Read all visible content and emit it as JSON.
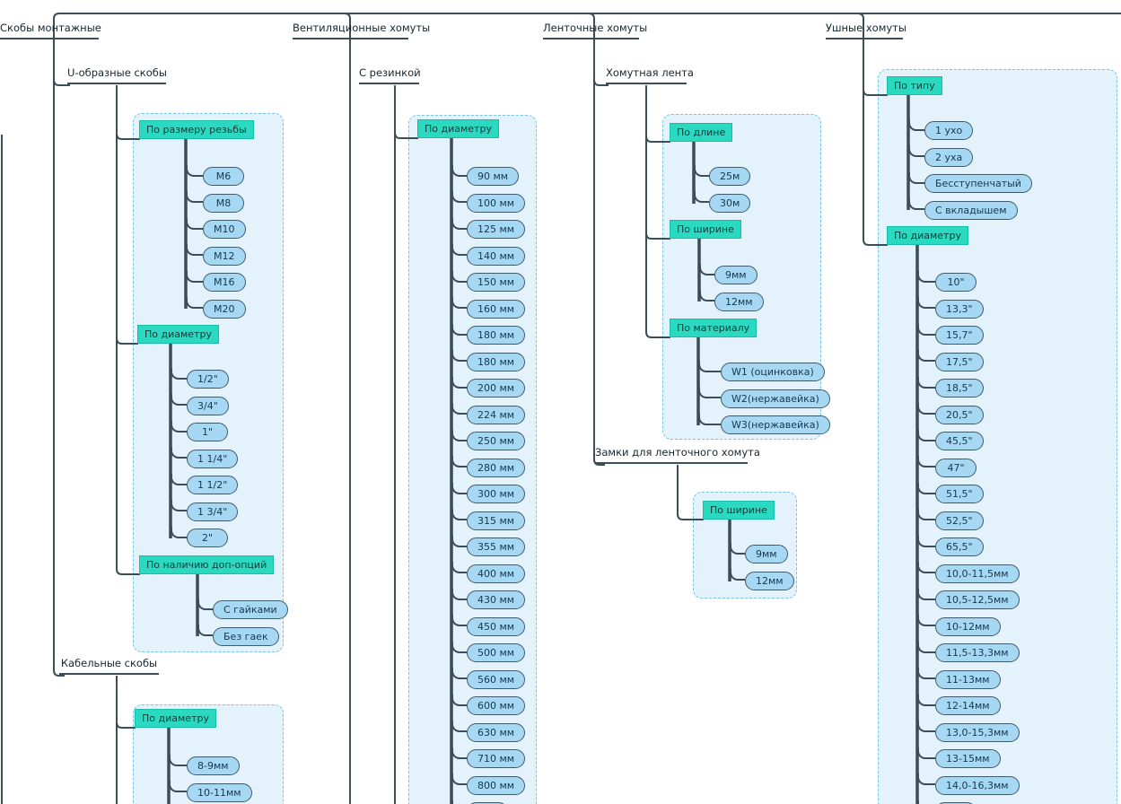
{
  "colors": {
    "line": "#3b4d57",
    "group_header_bg": "#2bd8c0",
    "group_header_border": "#17bda7",
    "pill_bg": "#a6d8f4",
    "pill_border": "#42596b",
    "box_bg": "#e4f3fb",
    "box_border": "#76c4e8"
  },
  "columns": [
    {
      "title": "Скобы монтажные",
      "children": [
        {
          "title": "U-образные скобы",
          "groups": [
            {
              "header": "По размеру резьбы",
              "items": [
                "М6",
                "М8",
                "М10",
                "М12",
                "М16",
                "М20"
              ]
            },
            {
              "header": "По диаметру",
              "items": [
                "1/2\"",
                "3/4\"",
                "1\"",
                "1 1/4\"",
                "1 1/2\"",
                "1 3/4\"",
                "2\""
              ]
            },
            {
              "header": "По наличию доп-опций",
              "items": [
                "С гайками",
                "Без гаек"
              ]
            }
          ]
        },
        {
          "title": "Кабельные скобы",
          "groups": [
            {
              "header": "По диаметру",
              "items": [
                "8-9мм",
                "10-11мм"
              ]
            }
          ]
        }
      ]
    },
    {
      "title": "Вентиляционные хомуты",
      "children": [
        {
          "title": "С резинкой",
          "groups": [
            {
              "header": "По диаметру",
              "items": [
                "90 мм",
                "100 мм",
                "125 мм",
                "140 мм",
                "150 мм",
                "160 мм",
                "180 мм",
                "180 мм",
                "200 мм",
                "224 мм",
                "250 мм",
                "280 мм",
                "300 мм",
                "315 мм",
                "355 мм",
                "400 мм",
                "430 мм",
                "450 мм",
                "500 мм",
                "560 мм",
                "600 мм",
                "630 мм",
                "710 мм",
                "800 мм",
                ""
              ]
            }
          ]
        }
      ]
    },
    {
      "title": "Ленточные хомуты",
      "children": [
        {
          "title": "Хомутная лента",
          "groups": [
            {
              "header": "По длине",
              "items": [
                "25м",
                "30м"
              ]
            },
            {
              "header": "По ширине",
              "items": [
                "9мм",
                "12мм"
              ]
            },
            {
              "header": "По материалу",
              "items": [
                "W1 (оцинковка)",
                "W2(нержавейка)",
                "W3(нержавейка)"
              ]
            }
          ]
        },
        {
          "title": "Замки для ленточного хомута",
          "groups": [
            {
              "header": "По ширине",
              "items": [
                "9мм",
                "12мм"
              ]
            }
          ]
        }
      ]
    },
    {
      "title": "Ушные хомуты",
      "groups": [
        {
          "header": "По типу",
          "items": [
            "1 ухо",
            "2 уха",
            "Бесступенчатый",
            "С вкладышем"
          ]
        },
        {
          "header": "По диаметру",
          "items": [
            "10\"",
            "13,3\"",
            "15,7\"",
            "17,5\"",
            "18,5\"",
            "20,5\"",
            "45,5\"",
            "47\"",
            "51,5\"",
            "52,5\"",
            "65,5\"",
            "10,0-11,5мм",
            "10,5-12,5мм",
            "10-12мм",
            "11,5-13,3мм",
            "11-13мм",
            "12-14мм",
            "13,0-15,3мм",
            "13-15мм",
            "14,0-16,3мм",
            ""
          ]
        }
      ]
    }
  ]
}
